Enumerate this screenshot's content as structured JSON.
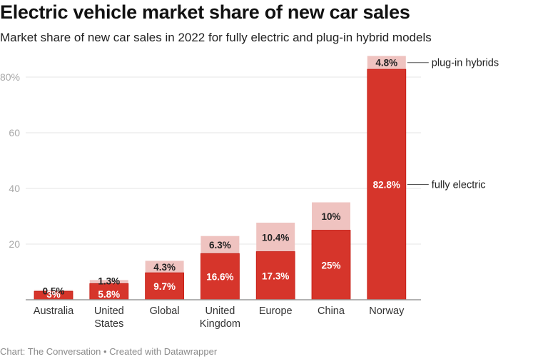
{
  "header": {
    "title": "Electric vehicle market share of new car sales",
    "subtitle": "Market share of new car sales in 2022 for fully electric and plug-in hybrid models"
  },
  "footer": {
    "text": "Chart: The Conversation • Created with Datawrapper"
  },
  "colors": {
    "fully_electric": "#d6352b",
    "plug_in_hybrid": "#efc3c0",
    "grid": "#e6e6e6",
    "baseline": "#999999"
  },
  "chart_data": {
    "type": "bar",
    "stacked": true,
    "title": "Electric vehicle market share of new car sales",
    "subtitle": "Market share of new car sales in 2022 for fully electric and plug-in hybrid models",
    "xlabel": "",
    "ylabel": "",
    "ylim": [
      0,
      88
    ],
    "yticks": [
      20,
      40,
      60,
      80
    ],
    "ytick_labels": [
      "20",
      "40",
      "60",
      "80%"
    ],
    "grid": true,
    "categories": [
      [
        "Australia"
      ],
      [
        "United",
        "States"
      ],
      [
        "Global"
      ],
      [
        "United",
        "Kingdom"
      ],
      [
        "Europe"
      ],
      [
        "China"
      ],
      [
        "Norway"
      ]
    ],
    "series": [
      {
        "name": "fully electric",
        "values": [
          3,
          5.8,
          9.7,
          16.6,
          17.3,
          25,
          82.8
        ],
        "labels": [
          "3%",
          "5.8%",
          "9.7%",
          "16.6%",
          "17.3%",
          "25%",
          "82.8%"
        ]
      },
      {
        "name": "plug-in hybrids",
        "values": [
          0.5,
          1.3,
          4.3,
          6.3,
          10.4,
          10,
          4.8
        ],
        "labels": [
          "0.5%",
          "1.3%",
          "4.3%",
          "6.3%",
          "10.4%",
          "10%",
          "4.8%"
        ]
      }
    ],
    "legend": "direct labels at right of last bar",
    "annotations": [
      "plug-in hybrids",
      "fully electric"
    ]
  }
}
